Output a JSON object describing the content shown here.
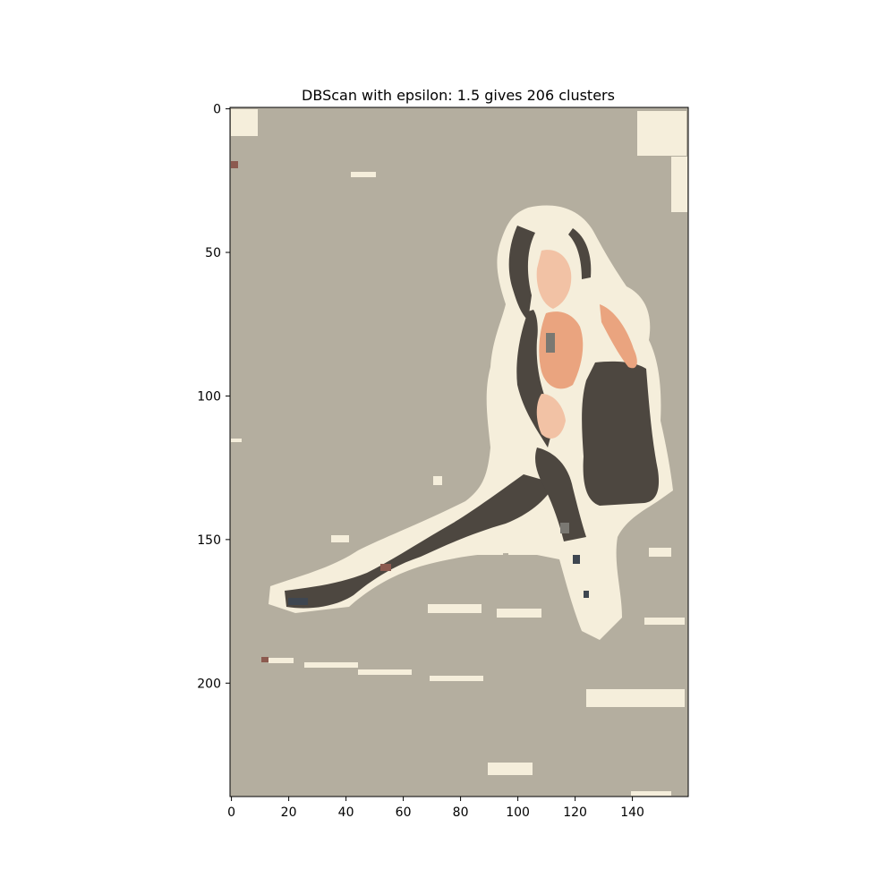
{
  "title": "DBScan with epsilon: 1.5 gives 206 clusters",
  "image": {
    "width": 160,
    "height": 240,
    "x_ticks": [
      0,
      20,
      40,
      60,
      80,
      100,
      120,
      140
    ],
    "y_ticks": [
      0,
      50,
      100,
      150,
      200
    ],
    "colors": {
      "background": "#b4ae9f",
      "light": "#f5eedb",
      "dark": "#4d4740",
      "skin": "#eaa47f",
      "skin_light": "#f2c2a5",
      "gray": "#7a7872",
      "blue_gray": "#3e4650",
      "rust": "#8c5a4f",
      "pale": "#d8d4ca"
    }
  }
}
